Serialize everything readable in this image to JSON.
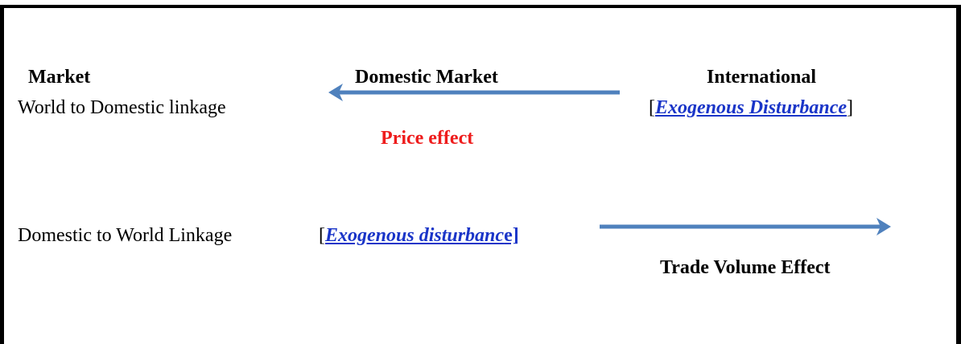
{
  "columns": {
    "left": "Market",
    "middle": "Domestic Market",
    "right": "International"
  },
  "rows": [
    {
      "label": "World to Domestic linkage",
      "bracket_open": "[",
      "disturbance": "Exogenous Disturbance",
      "bracket_close": "]",
      "effect": "Price effect"
    },
    {
      "label": "Domestic to World Linkage",
      "bracket_open": "[",
      "disturbance": "Exogenous disturbanc",
      "bracket_close": "e]",
      "effect": "Trade Volume Effect"
    }
  ]
}
